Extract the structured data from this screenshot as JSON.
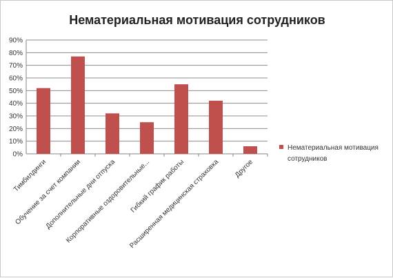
{
  "chart_data": {
    "type": "bar",
    "title": "Нематериальная мотивация сотрудников",
    "categories": [
      "Тимбилдинги",
      "Обучение за счет компании",
      "Дополнительные дни отпуска",
      "Корпоративные оздоровительные...",
      "Гибкий график работы",
      "Расширенная медицинская страховка",
      "Другое"
    ],
    "series": [
      {
        "name": "Нематериальная мотивация сотрудников",
        "values": [
          52,
          77,
          32,
          25,
          55,
          42,
          6
        ],
        "color": "#c0504d"
      }
    ],
    "ylim": [
      0,
      90
    ],
    "yticks": [
      "0%",
      "10%",
      "20%",
      "30%",
      "40%",
      "50%",
      "60%",
      "70%",
      "80%",
      "90%"
    ],
    "ytick_step": 10,
    "grid": true,
    "legend": {
      "position": "right",
      "lines": [
        "Нематериальная мотивация",
        "сотрудников"
      ]
    }
  }
}
